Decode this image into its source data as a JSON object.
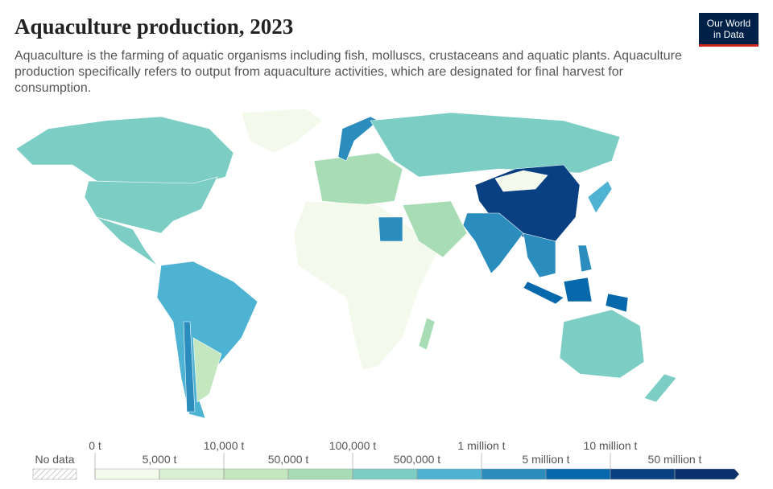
{
  "header": {
    "title": "Aquaculture production, 2023",
    "subtitle": "Aquaculture is the farming of aquatic organisms including fish, molluscs, crustaceans and aquatic plants. Aquaculture production specifically refers to output from aquaculture activities, which are designated for final harvest for consumption.",
    "logo": [
      "Our World",
      "in Data"
    ]
  },
  "legend": {
    "no_data": "No data",
    "thresholds": [
      {
        "value": 0,
        "label": "0 t"
      },
      {
        "value": 5000,
        "label": "5,000 t"
      },
      {
        "value": 10000,
        "label": "10,000 t"
      },
      {
        "value": 50000,
        "label": "50,000 t"
      },
      {
        "value": 100000,
        "label": "100,000 t"
      },
      {
        "value": 500000,
        "label": "500,000 t"
      },
      {
        "value": 1000000,
        "label": "1 million t"
      },
      {
        "value": 5000000,
        "label": "5 million t"
      },
      {
        "value": 10000000,
        "label": "10 million t"
      },
      {
        "value": 50000000,
        "label": "50 million t"
      }
    ],
    "colors": [
      "#f3faec",
      "#d9f0d3",
      "#c4e7c0",
      "#a8dcb5",
      "#7ccdc4",
      "#4eb3d3",
      "#2b8cbe",
      "#0868ac",
      "#084081",
      "#08306b"
    ]
  }
}
